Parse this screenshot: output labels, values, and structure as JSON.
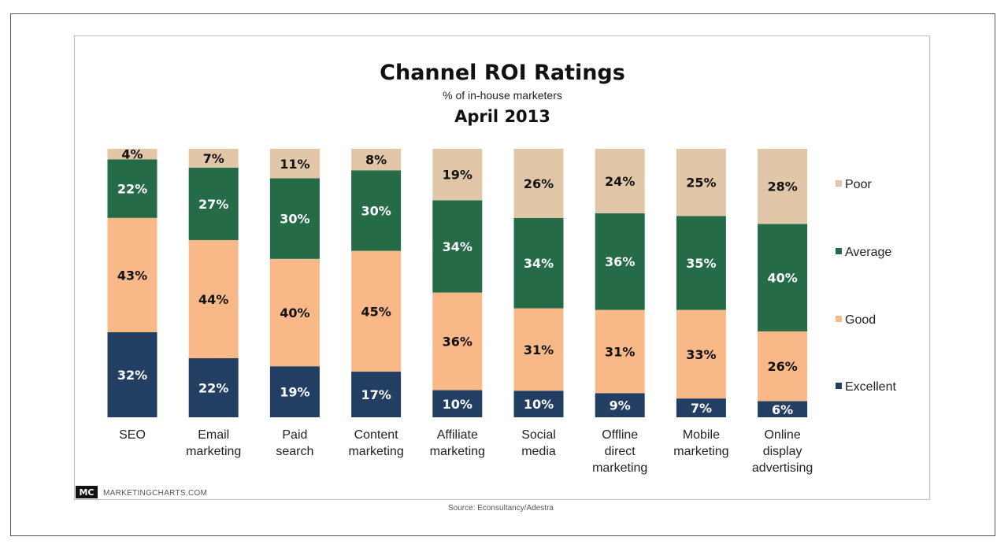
{
  "chart_data": {
    "type": "bar",
    "stacked": true,
    "title": "Channel ROI Ratings",
    "subtitle": "% of in-house marketers",
    "period": "April 2013",
    "categories": [
      [
        "SEO"
      ],
      [
        "Email",
        "marketing"
      ],
      [
        "Paid",
        "search"
      ],
      [
        "Content",
        "marketing"
      ],
      [
        "Affiliate",
        "marketing"
      ],
      [
        "Social",
        "media"
      ],
      [
        "Offline",
        "direct",
        "marketing"
      ],
      [
        "Mobile",
        "marketing"
      ],
      [
        "Online",
        "display",
        "advertising"
      ]
    ],
    "series": [
      {
        "name": "Excellent",
        "color": "#223f63",
        "label_color": "#ffffff",
        "values": [
          32,
          22,
          19,
          17,
          10,
          10,
          9,
          7,
          6
        ]
      },
      {
        "name": "Good",
        "color": "#f8b887",
        "label_color": "#111111",
        "values": [
          43,
          44,
          40,
          45,
          36,
          31,
          31,
          33,
          26
        ]
      },
      {
        "name": "Average",
        "color": "#256b48",
        "label_color": "#ffffff",
        "values": [
          22,
          27,
          30,
          30,
          34,
          34,
          36,
          35,
          40
        ]
      },
      {
        "name": "Poor",
        "color": "#e2c6a8",
        "label_color": "#111111",
        "values": [
          4,
          7,
          11,
          8,
          19,
          26,
          24,
          25,
          28
        ]
      }
    ],
    "value_suffix": "%",
    "legend_order": [
      "Poor",
      "Average",
      "Good",
      "Excellent"
    ],
    "legend_position": "right",
    "ylim": [
      0,
      100
    ]
  },
  "branding": {
    "badge": "MC",
    "site": "MARKETINGCHARTS.COM"
  },
  "source": "Source: Econsultancy/Adestra"
}
